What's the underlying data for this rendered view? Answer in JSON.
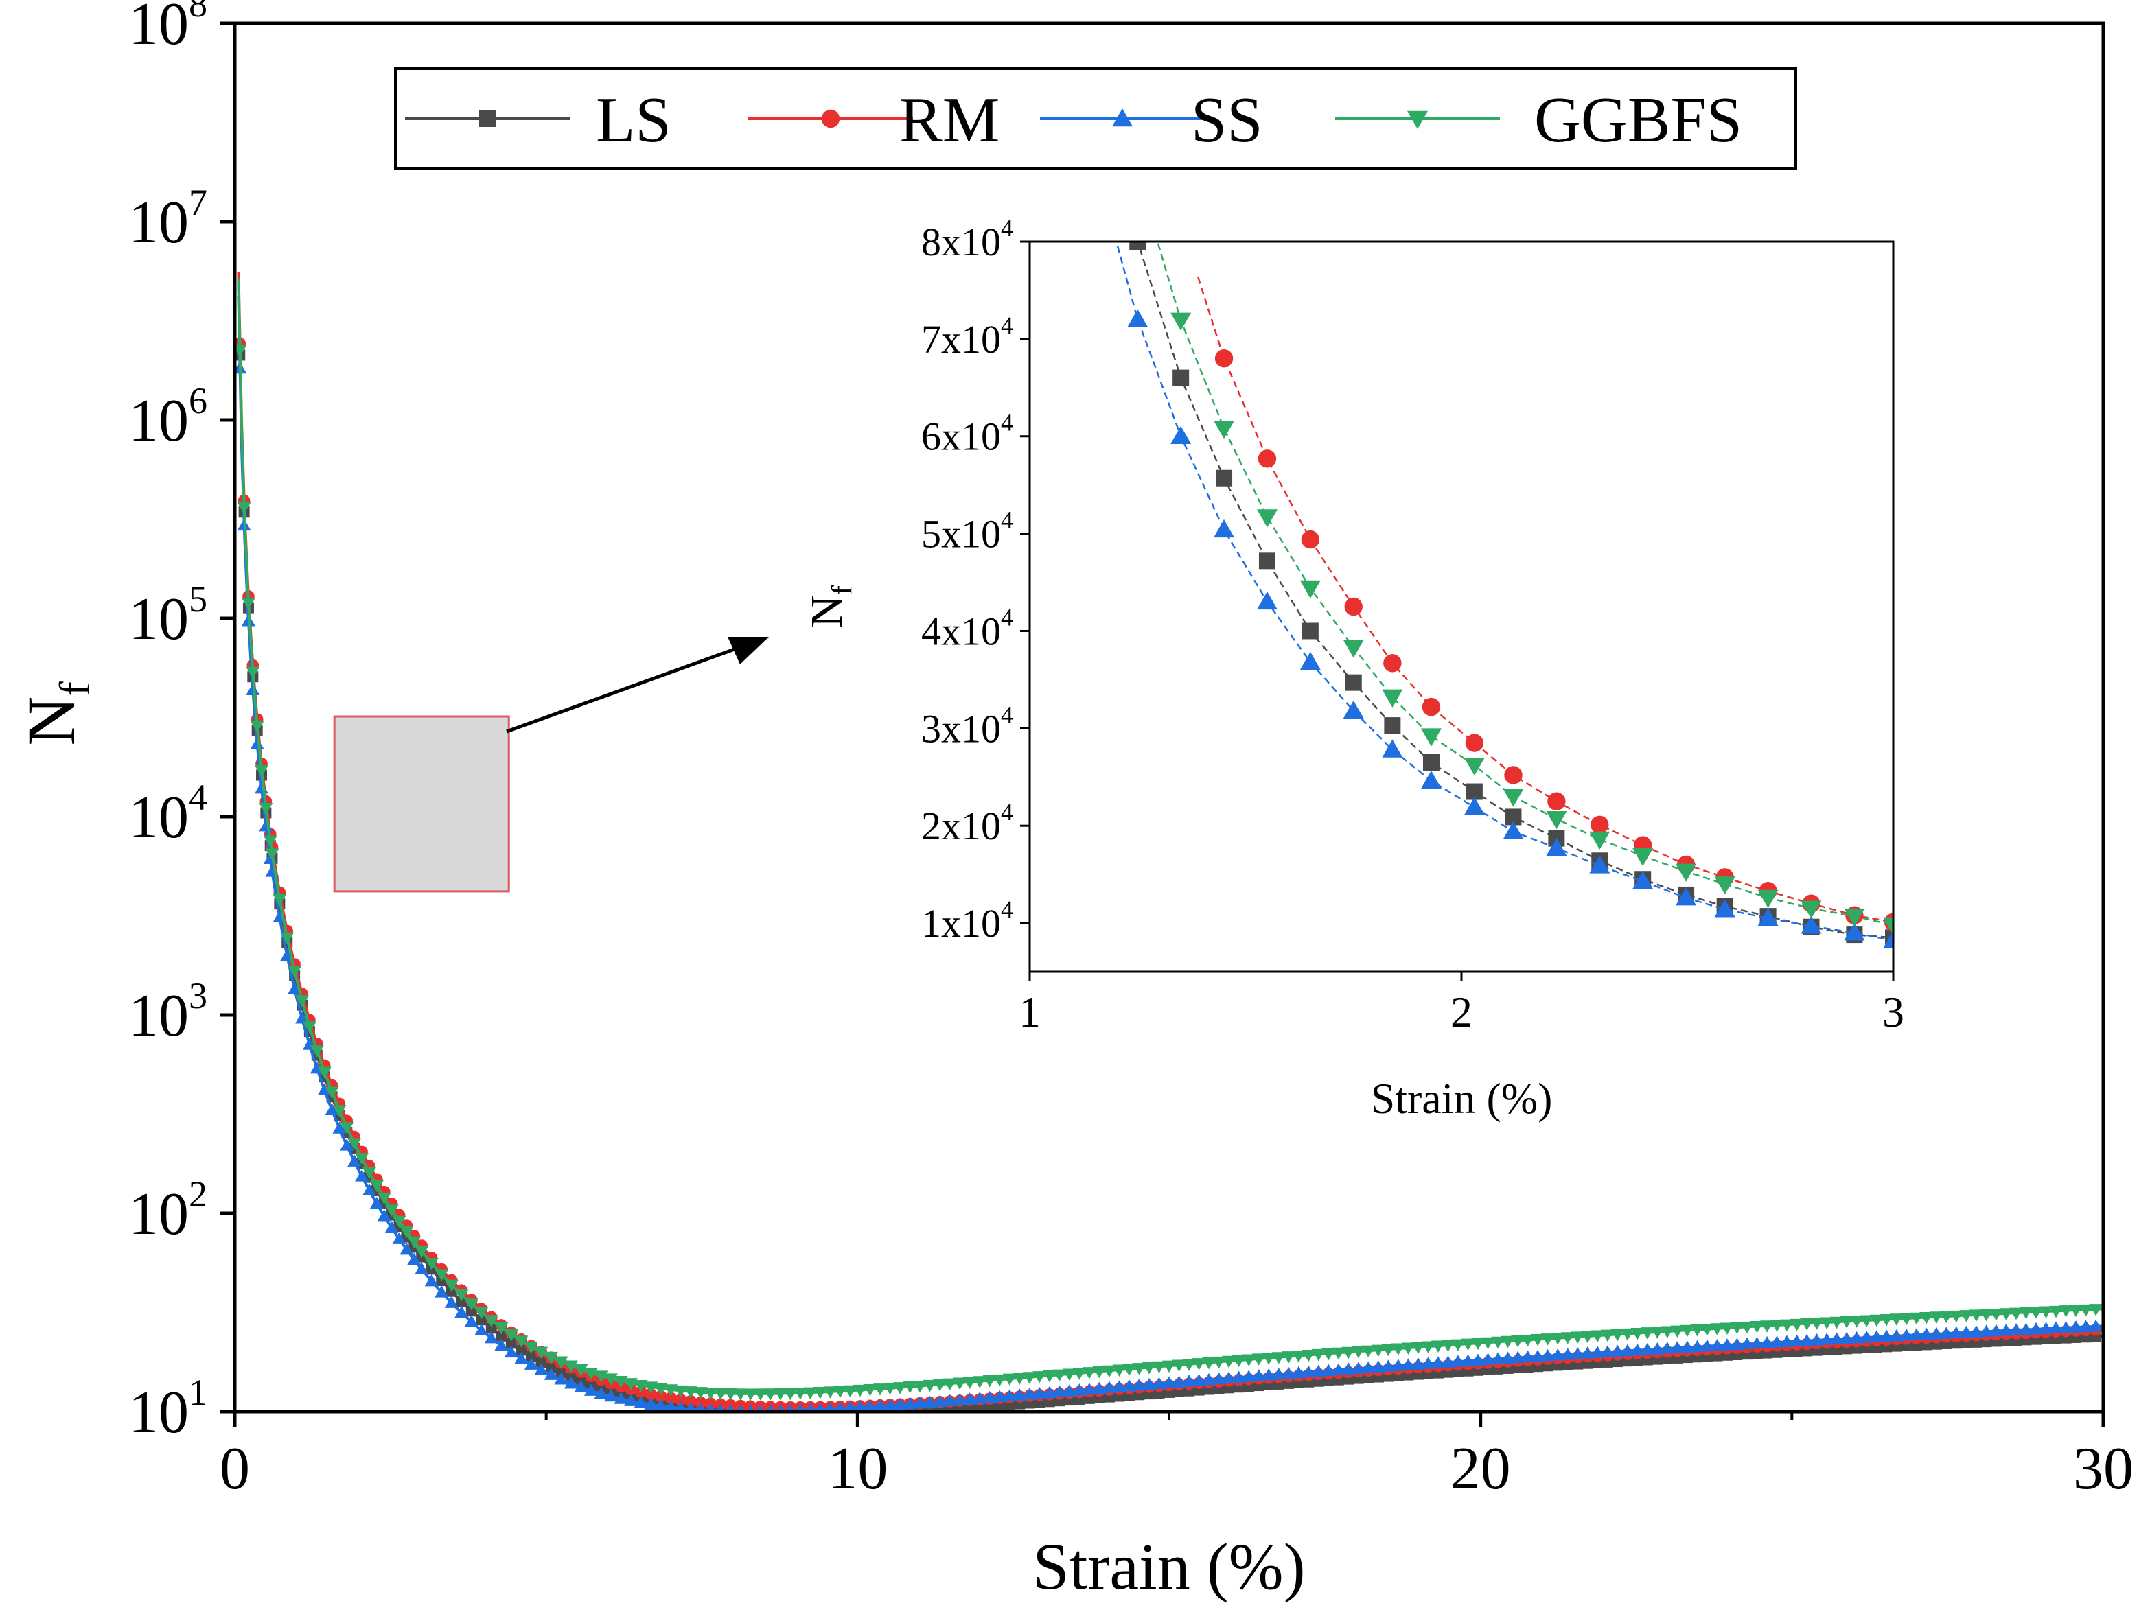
{
  "chart_data": [
    {
      "type": "line",
      "role": "main",
      "xlabel": "Strain (%)",
      "ylabel": "N",
      "ylabel_sub": "f",
      "xlim": [
        0,
        30
      ],
      "ylim": [
        10,
        100000000
      ],
      "yscale": "log",
      "x_ticks": [
        {
          "value": 0,
          "label": "0"
        },
        {
          "value": 10,
          "label": "10"
        },
        {
          "value": 20,
          "label": "20"
        },
        {
          "value": 30,
          "label": "30"
        }
      ],
      "x_minor_ticks": [
        5,
        15,
        25
      ],
      "y_ticks": [
        {
          "value": 10,
          "base": "10",
          "exp": "1"
        },
        {
          "value": 100,
          "base": "10",
          "exp": "2"
        },
        {
          "value": 1000,
          "base": "10",
          "exp": "3"
        },
        {
          "value": 10000,
          "base": "10",
          "exp": "4"
        },
        {
          "value": 100000,
          "base": "10",
          "exp": "5"
        },
        {
          "value": 1000000,
          "base": "10",
          "exp": "6"
        },
        {
          "value": 10000000,
          "base": "10",
          "exp": "7"
        },
        {
          "value": 100000000,
          "base": "10",
          "exp": "8"
        }
      ],
      "legend": {
        "position": "top",
        "entries": [
          "LS",
          "RM",
          "SS",
          "GGBFS"
        ]
      },
      "zoom_box": {
        "x": [
          1.6,
          4.4
        ],
        "y": [
          4200,
          32000
        ]
      },
      "series": [
        {
          "name": "LS",
          "color": "#4a4a4a",
          "marker": "square",
          "a": 1400,
          "b": 2.9,
          "y_end": 24
        },
        {
          "name": "RM",
          "color": "#e8312f",
          "marker": "circle",
          "a": 1600,
          "b": 2.9,
          "y_end": 26
        },
        {
          "name": "SS",
          "color": "#1f6fe0",
          "marker": "triangle-up",
          "a": 1200,
          "b": 2.9,
          "y_end": 27
        },
        {
          "name": "GGBFS",
          "color": "#2eaa62",
          "marker": "triangle-down",
          "a": 1480,
          "b": 2.9,
          "y_end": 33
        }
      ]
    },
    {
      "type": "scatter",
      "role": "inset",
      "xlabel": "Strain (%)",
      "ylabel": "N",
      "ylabel_sub": "f",
      "xlim": [
        1,
        3
      ],
      "ylim": [
        5000,
        80000
      ],
      "x_ticks": [
        {
          "value": 1,
          "label": "1"
        },
        {
          "value": 2,
          "label": "2"
        },
        {
          "value": 3,
          "label": "3"
        }
      ],
      "y_ticks": [
        {
          "value": 10000,
          "mant": "1",
          "base": "x10",
          "exp": "4"
        },
        {
          "value": 20000,
          "mant": "2",
          "base": "x10",
          "exp": "4"
        },
        {
          "value": 30000,
          "mant": "3",
          "base": "x10",
          "exp": "4"
        },
        {
          "value": 40000,
          "mant": "4",
          "base": "x10",
          "exp": "4"
        },
        {
          "value": 50000,
          "mant": "5",
          "base": "x10",
          "exp": "4"
        },
        {
          "value": 60000,
          "mant": "6",
          "base": "x10",
          "exp": "4"
        },
        {
          "value": 70000,
          "mant": "7",
          "base": "x10",
          "exp": "4"
        },
        {
          "value": 80000,
          "mant": "8",
          "base": "x10",
          "exp": "4"
        }
      ],
      "series": [
        {
          "name": "LS",
          "x": [
            1.25,
            1.35,
            1.45,
            1.55,
            1.65,
            1.75,
            1.84,
            1.93,
            2.03,
            2.12,
            2.22,
            2.32,
            2.42,
            2.52,
            2.61,
            2.71,
            2.81,
            2.91,
            3.0
          ],
          "y": [
            80000,
            66000,
            55700,
            47200,
            40000,
            34700,
            30300,
            26500,
            23500,
            20900,
            18700,
            16400,
            14500,
            12900,
            11700,
            10700,
            9600,
            8800,
            8500
          ]
        },
        {
          "name": "RM",
          "x": [
            1.45,
            1.55,
            1.65,
            1.75,
            1.84,
            1.93,
            2.03,
            2.12,
            2.22,
            2.32,
            2.42,
            2.52,
            2.61,
            2.71,
            2.81,
            2.91,
            3.0
          ],
          "y": [
            68000,
            57700,
            49400,
            42500,
            36700,
            32200,
            28500,
            25200,
            22500,
            20100,
            18000,
            16000,
            14700,
            13300,
            12000,
            10800,
            10100
          ]
        },
        {
          "name": "SS",
          "x": [
            1.25,
            1.35,
            1.45,
            1.55,
            1.65,
            1.75,
            1.84,
            1.93,
            2.03,
            2.12,
            2.22,
            2.32,
            2.42,
            2.52,
            2.61,
            2.71,
            2.81,
            2.91,
            3.0
          ],
          "y": [
            72000,
            60000,
            50400,
            43000,
            36800,
            31800,
            27800,
            24600,
            21900,
            19400,
            17700,
            15900,
            14300,
            12600,
            11400,
            10500,
            9700,
            9000,
            8200
          ]
        },
        {
          "name": "GGBFS",
          "x": [
            1.35,
            1.45,
            1.55,
            1.65,
            1.75,
            1.84,
            1.93,
            2.03,
            2.12,
            2.22,
            2.32,
            2.42,
            2.52,
            2.61,
            2.71,
            2.81,
            2.91,
            3.0
          ],
          "y": [
            71900,
            60800,
            51700,
            44400,
            38300,
            33200,
            29200,
            26200,
            23000,
            20700,
            18600,
            16900,
            15300,
            14000,
            12600,
            11500,
            10700,
            9800
          ]
        }
      ]
    }
  ]
}
